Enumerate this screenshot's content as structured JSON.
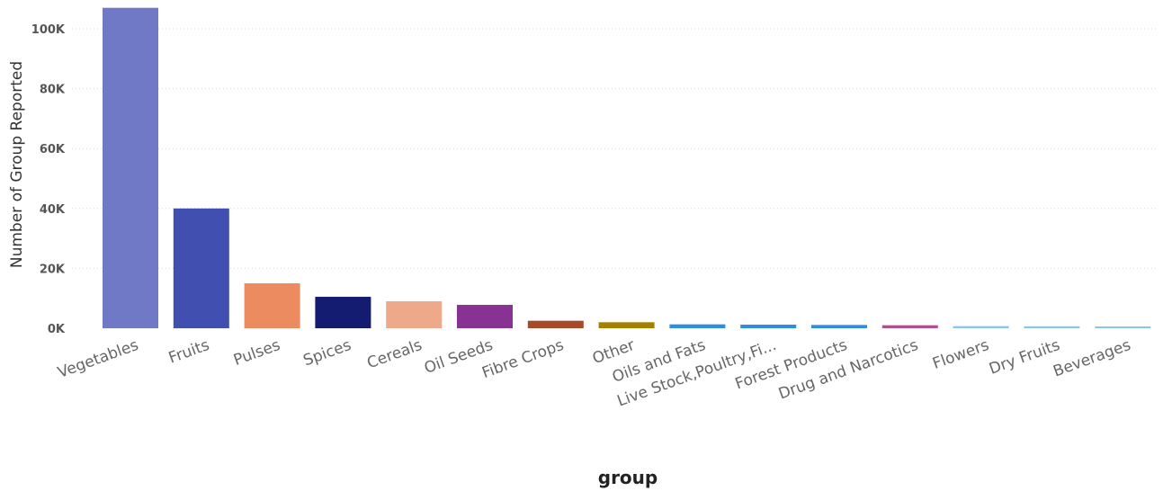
{
  "chart_data": {
    "type": "bar",
    "xlabel": "group",
    "ylabel": "Number of Group Reported",
    "ylim": [
      0,
      107000
    ],
    "yticks": [
      0,
      20000,
      40000,
      60000,
      80000,
      100000
    ],
    "ytick_labels": [
      "0K",
      "20K",
      "40K",
      "60K",
      "80K",
      "100K"
    ],
    "grid": true,
    "categories": [
      "Vegetables",
      "Fruits",
      "Pulses",
      "Spices",
      "Cereals",
      "Oil Seeds",
      "Fibre Crops",
      "Other",
      "Oils and Fats",
      "Live Stock,Poultry,Fi...",
      "Forest Products",
      "Drug and Narcotics",
      "Flowers",
      "Dry Fruits",
      "Beverages"
    ],
    "values": [
      107000,
      40000,
      15000,
      10500,
      9000,
      7800,
      2500,
      2000,
      1300,
      1200,
      1100,
      1000,
      700,
      650,
      600
    ],
    "colors": [
      "#7079c6",
      "#414fb0",
      "#ec8b5f",
      "#141c72",
      "#eea98b",
      "#883394",
      "#a84a2a",
      "#a38000",
      "#2e8ee4",
      "#2e8ee4",
      "#2e8ee4",
      "#b44f8e",
      "#8ac4f2",
      "#8ac4f2",
      "#8ac4f2"
    ]
  }
}
